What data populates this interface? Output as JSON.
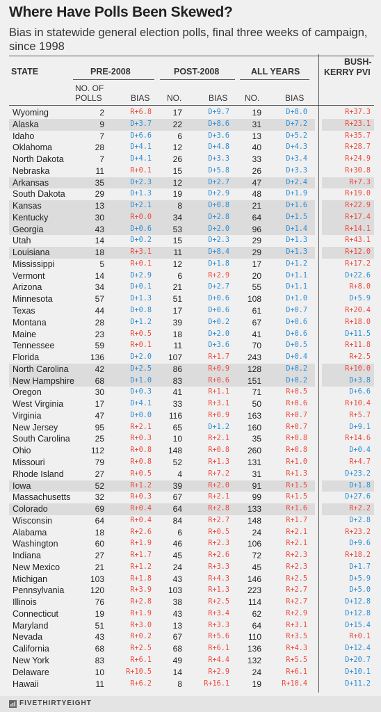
{
  "title": "Where Have Polls Been Skewed?",
  "subtitle": "Bias in statewide general election polls, final three weeks of campaign, since 1998",
  "headers": {
    "state": "STATE",
    "pre": "PRE-2008",
    "post": "POST-2008",
    "all": "ALL YEARS",
    "pvi_line1": "BUSH-",
    "pvi_line2": "KERRY PVI",
    "no_of": "NO. OF",
    "polls": "POLLS",
    "bias": "BIAS",
    "no": "NO."
  },
  "colors": {
    "democrat": "#2a8cd6",
    "republican": "#f0473a",
    "highlight": "#dcdcdc"
  },
  "footer": {
    "logo": "FIVETHIRTYEIGHT",
    "logo_icon": "fivethirtyeight-logo-icon"
  },
  "chart_data": {
    "type": "table",
    "columns": [
      "State",
      "Pre-2008 No. of polls",
      "Pre-2008 Bias",
      "Post-2008 No.",
      "Post-2008 Bias",
      "All years No.",
      "All years Bias",
      "Bush-Kerry PVI"
    ],
    "rows": [
      {
        "state": "Wyoming",
        "pre_n": "2",
        "pre_bias": "R+6.8",
        "post_n": "17",
        "post_bias": "D+9.7",
        "all_n": "19",
        "all_bias": "D+8.0",
        "pvi": "R+37.3",
        "highlight": false
      },
      {
        "state": "Alaska",
        "pre_n": "9",
        "pre_bias": "D+3.7",
        "post_n": "22",
        "post_bias": "D+8.6",
        "all_n": "31",
        "all_bias": "D+7.2",
        "pvi": "R+23.1",
        "highlight": true
      },
      {
        "state": "Idaho",
        "pre_n": "7",
        "pre_bias": "D+6.6",
        "post_n": "6",
        "post_bias": "D+3.6",
        "all_n": "13",
        "all_bias": "D+5.2",
        "pvi": "R+35.7",
        "highlight": false
      },
      {
        "state": "Oklahoma",
        "pre_n": "28",
        "pre_bias": "D+4.1",
        "post_n": "12",
        "post_bias": "D+4.8",
        "all_n": "40",
        "all_bias": "D+4.3",
        "pvi": "R+28.7",
        "highlight": false
      },
      {
        "state": "North Dakota",
        "pre_n": "7",
        "pre_bias": "D+4.1",
        "post_n": "26",
        "post_bias": "D+3.3",
        "all_n": "33",
        "all_bias": "D+3.4",
        "pvi": "R+24.9",
        "highlight": false
      },
      {
        "state": "Nebraska",
        "pre_n": "11",
        "pre_bias": "R+0.1",
        "post_n": "15",
        "post_bias": "D+5.8",
        "all_n": "26",
        "all_bias": "D+3.3",
        "pvi": "R+30.8",
        "highlight": false
      },
      {
        "state": "Arkansas",
        "pre_n": "35",
        "pre_bias": "D+2.3",
        "post_n": "12",
        "post_bias": "D+2.7",
        "all_n": "47",
        "all_bias": "D+2.4",
        "pvi": "R+7.3",
        "highlight": true
      },
      {
        "state": "South Dakota",
        "pre_n": "29",
        "pre_bias": "D+1.3",
        "post_n": "19",
        "post_bias": "D+2.9",
        "all_n": "48",
        "all_bias": "D+1.9",
        "pvi": "R+19.0",
        "highlight": false
      },
      {
        "state": "Kansas",
        "pre_n": "13",
        "pre_bias": "D+2.1",
        "post_n": "8",
        "post_bias": "D+0.8",
        "all_n": "21",
        "all_bias": "D+1.6",
        "pvi": "R+22.9",
        "highlight": true
      },
      {
        "state": "Kentucky",
        "pre_n": "30",
        "pre_bias": "R+0.0",
        "post_n": "34",
        "post_bias": "D+2.8",
        "all_n": "64",
        "all_bias": "D+1.5",
        "pvi": "R+17.4",
        "highlight": true
      },
      {
        "state": "Georgia",
        "pre_n": "43",
        "pre_bias": "D+0.6",
        "post_n": "53",
        "post_bias": "D+2.0",
        "all_n": "96",
        "all_bias": "D+1.4",
        "pvi": "R+14.1",
        "highlight": true
      },
      {
        "state": "Utah",
        "pre_n": "14",
        "pre_bias": "D+0.2",
        "post_n": "15",
        "post_bias": "D+2.3",
        "all_n": "29",
        "all_bias": "D+1.3",
        "pvi": "R+43.1",
        "highlight": false
      },
      {
        "state": "Louisiana",
        "pre_n": "18",
        "pre_bias": "R+3.1",
        "post_n": "11",
        "post_bias": "D+8.4",
        "all_n": "29",
        "all_bias": "D+1.3",
        "pvi": "R+12.0",
        "highlight": true
      },
      {
        "state": "Mississippi",
        "pre_n": "5",
        "pre_bias": "R+0.1",
        "post_n": "12",
        "post_bias": "D+1.8",
        "all_n": "17",
        "all_bias": "D+1.2",
        "pvi": "R+17.2",
        "highlight": false
      },
      {
        "state": "Vermont",
        "pre_n": "14",
        "pre_bias": "D+2.9",
        "post_n": "6",
        "post_bias": "R+2.9",
        "all_n": "20",
        "all_bias": "D+1.1",
        "pvi": "D+22.6",
        "highlight": false
      },
      {
        "state": "Arizona",
        "pre_n": "34",
        "pre_bias": "D+0.1",
        "post_n": "21",
        "post_bias": "D+2.7",
        "all_n": "55",
        "all_bias": "D+1.1",
        "pvi": "R+8.0",
        "highlight": false
      },
      {
        "state": "Minnesota",
        "pre_n": "57",
        "pre_bias": "D+1.3",
        "post_n": "51",
        "post_bias": "D+0.6",
        "all_n": "108",
        "all_bias": "D+1.0",
        "pvi": "D+5.9",
        "highlight": false
      },
      {
        "state": "Texas",
        "pre_n": "44",
        "pre_bias": "D+0.8",
        "post_n": "17",
        "post_bias": "D+0.6",
        "all_n": "61",
        "all_bias": "D+0.7",
        "pvi": "R+20.4",
        "highlight": false
      },
      {
        "state": "Montana",
        "pre_n": "28",
        "pre_bias": "D+1.2",
        "post_n": "39",
        "post_bias": "D+0.2",
        "all_n": "67",
        "all_bias": "D+0.6",
        "pvi": "R+18.0",
        "highlight": false
      },
      {
        "state": "Maine",
        "pre_n": "23",
        "pre_bias": "R+0.5",
        "post_n": "18",
        "post_bias": "D+2.0",
        "all_n": "41",
        "all_bias": "D+0.6",
        "pvi": "D+11.5",
        "highlight": false
      },
      {
        "state": "Tennessee",
        "pre_n": "59",
        "pre_bias": "R+0.1",
        "post_n": "11",
        "post_bias": "D+3.6",
        "all_n": "70",
        "all_bias": "D+0.5",
        "pvi": "R+11.8",
        "highlight": false
      },
      {
        "state": "Florida",
        "pre_n": "136",
        "pre_bias": "D+2.0",
        "post_n": "107",
        "post_bias": "R+1.7",
        "all_n": "243",
        "all_bias": "D+0.4",
        "pvi": "R+2.5",
        "highlight": false
      },
      {
        "state": "North Carolina",
        "pre_n": "42",
        "pre_bias": "D+2.5",
        "post_n": "86",
        "post_bias": "R+0.9",
        "all_n": "128",
        "all_bias": "D+0.2",
        "pvi": "R+10.0",
        "highlight": true
      },
      {
        "state": "New Hampshire",
        "pre_n": "68",
        "pre_bias": "D+1.0",
        "post_n": "83",
        "post_bias": "R+0.6",
        "all_n": "151",
        "all_bias": "D+0.2",
        "pvi": "D+3.8",
        "highlight": true
      },
      {
        "state": "Oregon",
        "pre_n": "30",
        "pre_bias": "D+0.3",
        "post_n": "41",
        "post_bias": "R+1.1",
        "all_n": "71",
        "all_bias": "R+0.5",
        "pvi": "D+6.6",
        "highlight": false
      },
      {
        "state": "West Virginia",
        "pre_n": "17",
        "pre_bias": "D+4.1",
        "post_n": "33",
        "post_bias": "R+3.1",
        "all_n": "50",
        "all_bias": "R+0.6",
        "pvi": "R+10.4",
        "highlight": false
      },
      {
        "state": "Virginia",
        "pre_n": "47",
        "pre_bias": "D+0.0",
        "post_n": "116",
        "post_bias": "R+0.9",
        "all_n": "163",
        "all_bias": "R+0.7",
        "pvi": "R+5.7",
        "highlight": false
      },
      {
        "state": "New Jersey",
        "pre_n": "95",
        "pre_bias": "R+2.1",
        "post_n": "65",
        "post_bias": "D+1.2",
        "all_n": "160",
        "all_bias": "R+0.7",
        "pvi": "D+9.1",
        "highlight": false
      },
      {
        "state": "South Carolina",
        "pre_n": "25",
        "pre_bias": "R+0.3",
        "post_n": "10",
        "post_bias": "R+2.1",
        "all_n": "35",
        "all_bias": "R+0.8",
        "pvi": "R+14.6",
        "highlight": false
      },
      {
        "state": "Ohio",
        "pre_n": "112",
        "pre_bias": "R+0.8",
        "post_n": "148",
        "post_bias": "R+0.8",
        "all_n": "260",
        "all_bias": "R+0.8",
        "pvi": "D+0.4",
        "highlight": false
      },
      {
        "state": "Missouri",
        "pre_n": "79",
        "pre_bias": "R+0.8",
        "post_n": "52",
        "post_bias": "R+1.3",
        "all_n": "131",
        "all_bias": "R+1.0",
        "pvi": "R+4.7",
        "highlight": false
      },
      {
        "state": "Rhode Island",
        "pre_n": "27",
        "pre_bias": "R+0.5",
        "post_n": "4",
        "post_bias": "R+7.2",
        "all_n": "31",
        "all_bias": "R+1.3",
        "pvi": "D+23.2",
        "highlight": false
      },
      {
        "state": "Iowa",
        "pre_n": "52",
        "pre_bias": "R+1.2",
        "post_n": "39",
        "post_bias": "R+2.0",
        "all_n": "91",
        "all_bias": "R+1.5",
        "pvi": "D+1.8",
        "highlight": true
      },
      {
        "state": "Massachusetts",
        "pre_n": "32",
        "pre_bias": "R+0.3",
        "post_n": "67",
        "post_bias": "R+2.1",
        "all_n": "99",
        "all_bias": "R+1.5",
        "pvi": "D+27.6",
        "highlight": false
      },
      {
        "state": "Colorado",
        "pre_n": "69",
        "pre_bias": "R+0.4",
        "post_n": "64",
        "post_bias": "R+2.8",
        "all_n": "133",
        "all_bias": "R+1.6",
        "pvi": "R+2.2",
        "highlight": true
      },
      {
        "state": "Wisconsin",
        "pre_n": "64",
        "pre_bias": "R+0.4",
        "post_n": "84",
        "post_bias": "R+2.7",
        "all_n": "148",
        "all_bias": "R+1.7",
        "pvi": "D+2.8",
        "highlight": false
      },
      {
        "state": "Alabama",
        "pre_n": "18",
        "pre_bias": "R+2.6",
        "post_n": "6",
        "post_bias": "R+0.5",
        "all_n": "24",
        "all_bias": "R+2.1",
        "pvi": "R+23.2",
        "highlight": false
      },
      {
        "state": "Washington",
        "pre_n": "60",
        "pre_bias": "R+1.9",
        "post_n": "46",
        "post_bias": "R+2.3",
        "all_n": "106",
        "all_bias": "R+2.1",
        "pvi": "D+9.6",
        "highlight": false
      },
      {
        "state": "Indiana",
        "pre_n": "27",
        "pre_bias": "R+1.7",
        "post_n": "45",
        "post_bias": "R+2.6",
        "all_n": "72",
        "all_bias": "R+2.3",
        "pvi": "R+18.2",
        "highlight": false
      },
      {
        "state": "New Mexico",
        "pre_n": "21",
        "pre_bias": "R+1.2",
        "post_n": "24",
        "post_bias": "R+3.3",
        "all_n": "45",
        "all_bias": "R+2.3",
        "pvi": "D+1.7",
        "highlight": false
      },
      {
        "state": "Michigan",
        "pre_n": "103",
        "pre_bias": "R+1.8",
        "post_n": "43",
        "post_bias": "R+4.3",
        "all_n": "146",
        "all_bias": "R+2.5",
        "pvi": "D+5.9",
        "highlight": false
      },
      {
        "state": "Pennsylvania",
        "pre_n": "120",
        "pre_bias": "R+3.9",
        "post_n": "103",
        "post_bias": "R+1.3",
        "all_n": "223",
        "all_bias": "R+2.7",
        "pvi": "D+5.0",
        "highlight": false
      },
      {
        "state": "Illinois",
        "pre_n": "76",
        "pre_bias": "R+2.8",
        "post_n": "38",
        "post_bias": "R+2.5",
        "all_n": "114",
        "all_bias": "R+2.7",
        "pvi": "D+12.8",
        "highlight": false
      },
      {
        "state": "Connecticut",
        "pre_n": "19",
        "pre_bias": "R+1.9",
        "post_n": "43",
        "post_bias": "R+3.4",
        "all_n": "62",
        "all_bias": "R+2.9",
        "pvi": "D+12.8",
        "highlight": false
      },
      {
        "state": "Maryland",
        "pre_n": "51",
        "pre_bias": "R+3.0",
        "post_n": "13",
        "post_bias": "R+3.3",
        "all_n": "64",
        "all_bias": "R+3.1",
        "pvi": "D+15.4",
        "highlight": false
      },
      {
        "state": "Nevada",
        "pre_n": "43",
        "pre_bias": "R+0.2",
        "post_n": "67",
        "post_bias": "R+5.6",
        "all_n": "110",
        "all_bias": "R+3.5",
        "pvi": "R+0.1",
        "highlight": false
      },
      {
        "state": "California",
        "pre_n": "68",
        "pre_bias": "R+2.5",
        "post_n": "68",
        "post_bias": "R+6.1",
        "all_n": "136",
        "all_bias": "R+4.3",
        "pvi": "D+12.4",
        "highlight": false
      },
      {
        "state": "New York",
        "pre_n": "83",
        "pre_bias": "R+6.1",
        "post_n": "49",
        "post_bias": "R+4.4",
        "all_n": "132",
        "all_bias": "R+5.5",
        "pvi": "D+20.7",
        "highlight": false
      },
      {
        "state": "Delaware",
        "pre_n": "10",
        "pre_bias": "R+10.5",
        "post_n": "14",
        "post_bias": "R+2.9",
        "all_n": "24",
        "all_bias": "R+6.1",
        "pvi": "D+10.1",
        "highlight": false
      },
      {
        "state": "Hawaii",
        "pre_n": "11",
        "pre_bias": "R+6.2",
        "post_n": "8",
        "post_bias": "R+16.1",
        "all_n": "19",
        "all_bias": "R+10.4",
        "pvi": "D+11.2",
        "highlight": false
      }
    ]
  }
}
